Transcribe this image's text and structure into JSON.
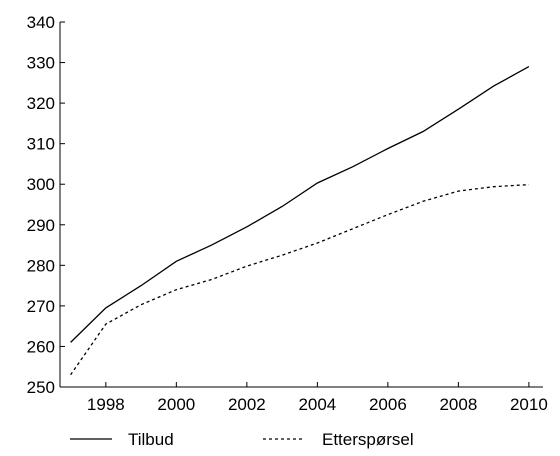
{
  "chart_data": {
    "type": "line",
    "title": "",
    "xlabel": "",
    "ylabel": "",
    "xlim": [
      1996.7,
      2010.4
    ],
    "ylim": [
      250,
      340
    ],
    "xticks": [
      1998,
      2000,
      2002,
      2004,
      2006,
      2008,
      2010
    ],
    "yticks": [
      250,
      260,
      270,
      280,
      290,
      300,
      310,
      320,
      330,
      340
    ],
    "grid": false,
    "legend_position": "bottom",
    "series": [
      {
        "name": "Tilbud",
        "style": "solid",
        "x": [
          1997,
          1998,
          1999,
          2000,
          2001,
          2002,
          2003,
          2004,
          2005,
          2006,
          2007,
          2008,
          2009,
          2010
        ],
        "y": [
          261,
          269.5,
          275,
          281,
          285,
          289.5,
          294.5,
          300.3,
          304.3,
          308.8,
          313,
          318.5,
          324.2,
          329
        ]
      },
      {
        "name": "Etterspørsel",
        "style": "dotted",
        "x": [
          1997,
          1998,
          1999,
          2000,
          2001,
          2002,
          2003,
          2004,
          2005,
          2006,
          2007,
          2008,
          2009,
          2010
        ],
        "y": [
          253,
          265.5,
          270.3,
          274,
          276.5,
          279.8,
          282.5,
          285.5,
          289,
          292.5,
          295.8,
          298.3,
          299.4,
          299.9
        ]
      }
    ]
  }
}
